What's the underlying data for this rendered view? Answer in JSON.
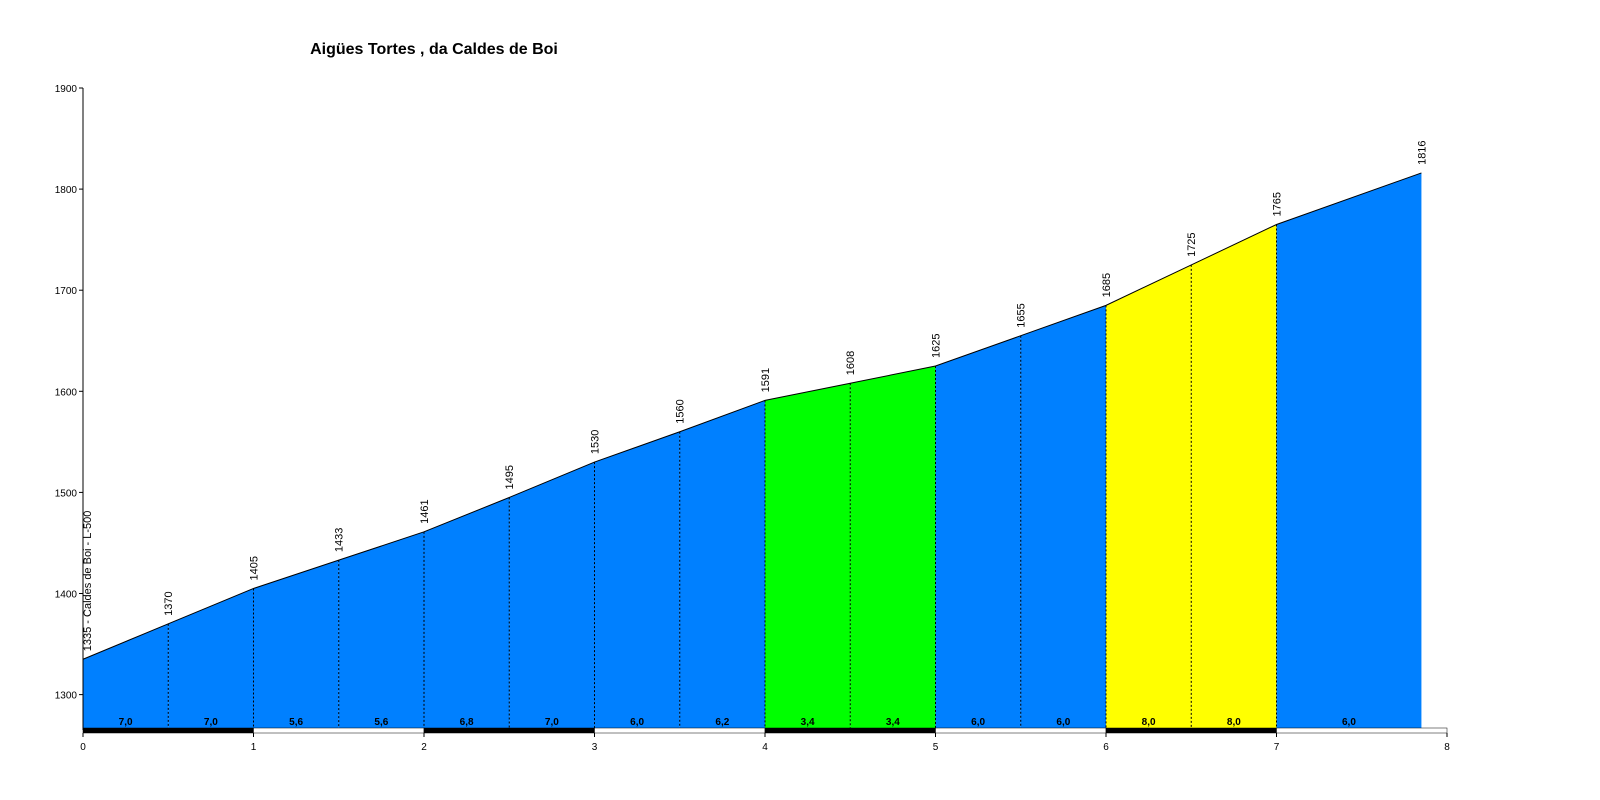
{
  "chart_data": {
    "type": "area",
    "title": "Aigües Tortes , da Caldes de Boi",
    "x": [
      0,
      0.5,
      1,
      1.5,
      2,
      2.5,
      3,
      3.5,
      4,
      4.5,
      5,
      5.5,
      6,
      6.5,
      7,
      7.85
    ],
    "values": [
      1335,
      1370,
      1405,
      1433,
      1461,
      1495,
      1530,
      1560,
      1591,
      1608,
      1625,
      1655,
      1685,
      1725,
      1765,
      1816
    ],
    "value_labels": [
      "1335 - Caldes de Boi - L-500",
      "1370",
      "1405",
      "1433",
      "1461",
      "1495",
      "1530",
      "1560",
      "1591",
      "1608",
      "1625",
      "1655",
      "1685",
      "1725",
      "1765",
      "1816"
    ],
    "segments": {
      "values": [
        7.0,
        7.0,
        5.6,
        5.6,
        6.8,
        7.0,
        6.0,
        6.2,
        3.4,
        3.4,
        6.0,
        6.0,
        8.0,
        8.0,
        6.0
      ],
      "value_labels": [
        "7,0",
        "7,0",
        "5,6",
        "5,6",
        "6,8",
        "7,0",
        "6,0",
        "6,2",
        "3,4",
        "3,4",
        "6,0",
        "6,0",
        "8,0",
        "8,0",
        "6,0"
      ],
      "colors": [
        "#0080ff",
        "#0080ff",
        "#0080ff",
        "#0080ff",
        "#0080ff",
        "#0080ff",
        "#0080ff",
        "#0080ff",
        "#00ff00",
        "#00ff00",
        "#0080ff",
        "#0080ff",
        "#ffff00",
        "#ffff00",
        "#0080ff"
      ]
    },
    "xlim": [
      0,
      8
    ],
    "xticks": [
      0,
      1,
      2,
      3,
      4,
      5,
      6,
      7,
      8
    ],
    "ylim": [
      1265,
      1900
    ],
    "yticks": [
      1300,
      1400,
      1500,
      1600,
      1700,
      1800,
      1900
    ]
  }
}
